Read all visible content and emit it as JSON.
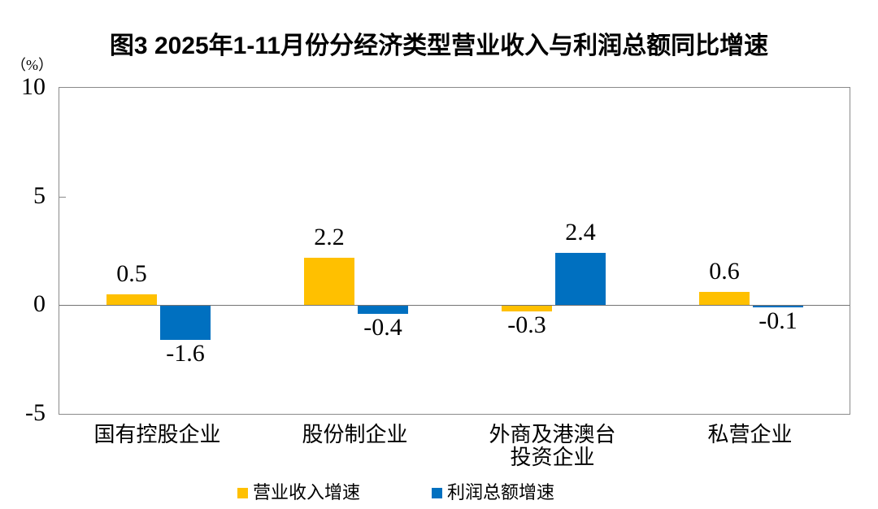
{
  "chart_data": {
    "type": "bar",
    "title": "图3 2025年1-11月份分经济类型营业收入与利润总额同比增速",
    "unit_label": "（%）",
    "categories": [
      "国有控股企业",
      "股份制企业",
      "外商及港澳台\n投资企业",
      "私营企业"
    ],
    "series": [
      {
        "name": "营业收入增速",
        "color": "#FFC000",
        "values": [
          0.5,
          2.2,
          -0.3,
          0.6
        ]
      },
      {
        "name": "利润总额增速",
        "color": "#0070C0",
        "values": [
          -1.6,
          -0.4,
          2.4,
          -0.1
        ]
      }
    ],
    "value_labels": [
      [
        "0.5",
        "2.2",
        "-0.3",
        "0.6"
      ],
      [
        "-1.6",
        "-0.4",
        "2.4",
        "-0.1"
      ]
    ],
    "ylim": [
      -5,
      10
    ],
    "yticks": [
      10,
      5,
      0,
      -5
    ],
    "grid": "zero-line-only",
    "legend_position": "bottom",
    "axis_color": "#8a8a8a",
    "zero_line_color": "#747474"
  }
}
